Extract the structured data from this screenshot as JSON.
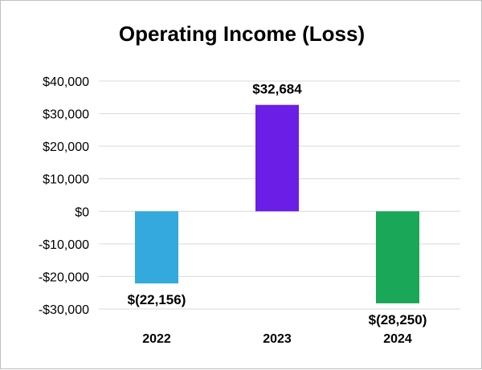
{
  "chart_data": {
    "type": "bar",
    "title": "Operating Income (Loss)",
    "xlabel": "",
    "ylabel": "",
    "categories": [
      "2022",
      "2023",
      "2024"
    ],
    "values": [
      -22156,
      32684,
      -28250
    ],
    "data_labels": [
      "$(22,156)",
      "$32,684",
      "$(28,250)"
    ],
    "bar_colors": [
      "#33a9dd",
      "#6a1ee6",
      "#1aa757"
    ],
    "ylim": [
      -30000,
      40000
    ],
    "yticks": [
      -30000,
      -20000,
      -10000,
      0,
      10000,
      20000,
      30000,
      40000
    ],
    "ytick_labels": [
      "-$30,000",
      "-$20,000",
      "-$10,000",
      "$0",
      "$10,000",
      "$20,000",
      "$30,000",
      "$40,000"
    ],
    "grid": true,
    "gridline_color": "#d9d9d9",
    "legend": "none"
  }
}
